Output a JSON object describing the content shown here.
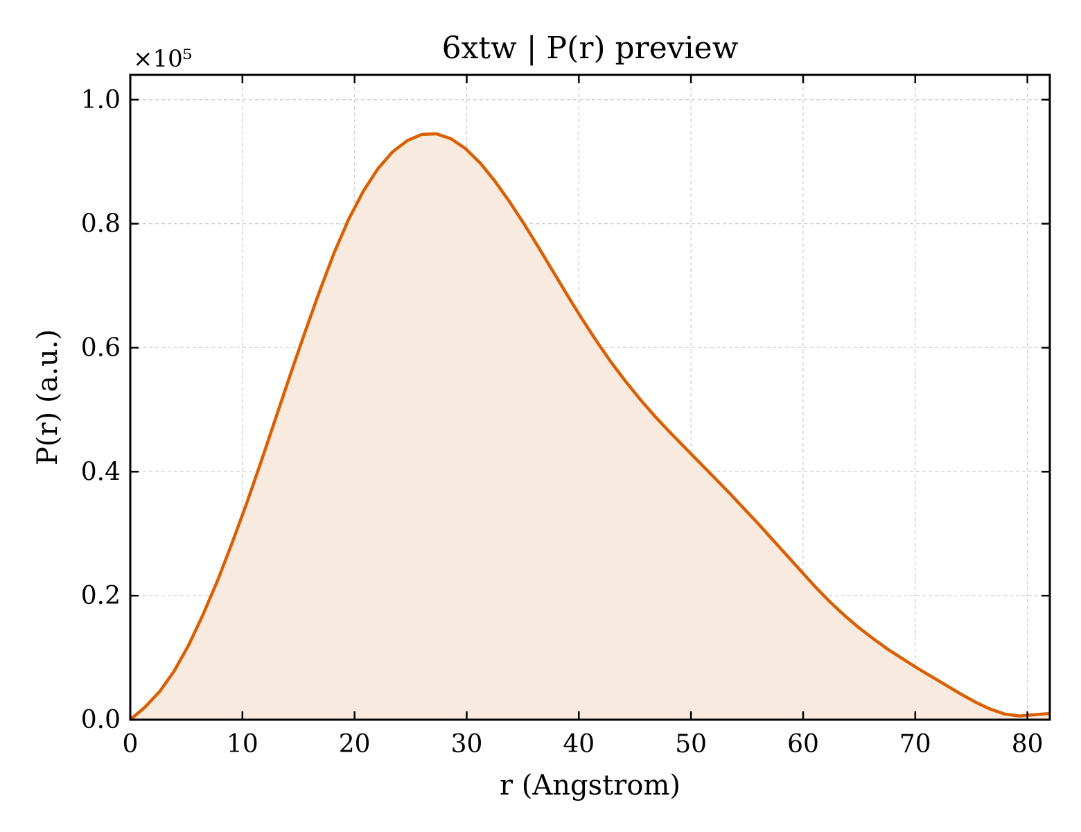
{
  "chart_data": {
    "type": "area",
    "title": "6xtw | P(r) preview",
    "xlabel": "r (Angstrom)",
    "ylabel": "P(r) (a.u.)",
    "y_offset_label": "×10⁵",
    "y_multiplier": 100000,
    "xlim": [
      0,
      82
    ],
    "ylim": [
      0,
      1.04
    ],
    "xticks": [
      0,
      10,
      20,
      30,
      40,
      50,
      60,
      70,
      80
    ],
    "yticks": [
      0.0,
      0.2,
      0.4,
      0.6,
      0.8,
      1.0
    ],
    "xtick_labels": [
      "0",
      "10",
      "20",
      "30",
      "40",
      "50",
      "60",
      "70",
      "80"
    ],
    "ytick_labels": [
      "0.0",
      "0.2",
      "0.4",
      "0.6",
      "0.8",
      "1.0"
    ],
    "grid": true,
    "line_color": "#d95f02",
    "fill_color": "#f9eadf",
    "series": [
      {
        "x": [
          0,
          1.3,
          2.6,
          3.9,
          5.2,
          6.5,
          7.8,
          9.1,
          10.4,
          11.7,
          13.0,
          14.3,
          15.6,
          16.9,
          18.2,
          19.5,
          20.8,
          22.1,
          23.4,
          24.7,
          26.0,
          27.3,
          28.6,
          29.9,
          31.2,
          32.5,
          33.8,
          35.1,
          36.4,
          37.7,
          39.0,
          40.3,
          41.6,
          42.9,
          44.2,
          45.5,
          46.8,
          48.1,
          49.4,
          50.7,
          52.0,
          53.3,
          54.6,
          55.9,
          57.2,
          58.5,
          59.8,
          61.1,
          62.4,
          63.7,
          65.0,
          66.3,
          67.6,
          68.9,
          70.2,
          71.5,
          72.8,
          74.1,
          75.4,
          76.7,
          78.0,
          79.3,
          80.6,
          82.0
        ],
        "y": [
          0.0,
          0.02,
          0.045,
          0.078,
          0.12,
          0.17,
          0.225,
          0.286,
          0.35,
          0.418,
          0.488,
          0.558,
          0.626,
          0.692,
          0.754,
          0.808,
          0.853,
          0.889,
          0.916,
          0.934,
          0.944,
          0.945,
          0.937,
          0.921,
          0.898,
          0.869,
          0.836,
          0.8,
          0.762,
          0.723,
          0.684,
          0.646,
          0.61,
          0.576,
          0.545,
          0.516,
          0.489,
          0.464,
          0.44,
          0.416,
          0.392,
          0.368,
          0.343,
          0.318,
          0.292,
          0.266,
          0.24,
          0.214,
          0.19,
          0.168,
          0.148,
          0.13,
          0.113,
          0.098,
          0.083,
          0.069,
          0.055,
          0.041,
          0.028,
          0.017,
          0.009,
          0.006,
          0.008,
          0.01
        ]
      }
    ]
  }
}
